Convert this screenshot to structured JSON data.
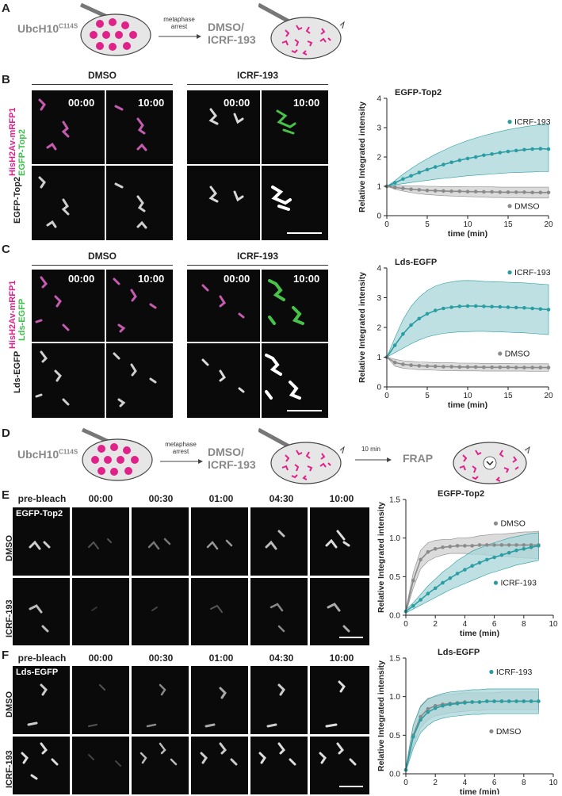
{
  "panelA": {
    "letter": "A",
    "mutant": "UbcH10",
    "mutant_sup": "C114S",
    "arrow_label_1": "metaphase",
    "arrow_label_2": "arrest",
    "treatment_1": "DMSO/",
    "treatment_2": "ICRF-193"
  },
  "panelB": {
    "letter": "B",
    "cond1": "DMSO",
    "cond2": "ICRF-193",
    "times": [
      "00:00",
      "10:00",
      "00:00",
      "10:00"
    ],
    "row1_label_a": "HisH2Av-mRFP1",
    "row1_label_b": "EGFP-Top2",
    "row2_label": "EGFP-Top2"
  },
  "panelC": {
    "letter": "C",
    "cond1": "DMSO",
    "cond2": "ICRF-193",
    "times": [
      "00:00",
      "10:00",
      "00:00",
      "10:00"
    ],
    "row1_label_a": "HisH2Av-mRFP1",
    "row1_label_b": "Lds-EGFP",
    "row2_label": "Lds-EGFP"
  },
  "panelD": {
    "letter": "D",
    "mutant": "UbcH10",
    "mutant_sup": "C114S",
    "arrow_label_1": "metaphase",
    "arrow_label_2": "arrest",
    "treatment_1": "DMSO/",
    "treatment_2": "ICRF-193",
    "arrow2_label": "10 min",
    "frap_label": "FRAP"
  },
  "panelE": {
    "letter": "E",
    "times": [
      "pre-bleach",
      "00:00",
      "00:30",
      "01:00",
      "04:30",
      "10:00"
    ],
    "inset_label": "EGFP-Top2",
    "row1": "DMSO",
    "row2": "ICRF-193"
  },
  "panelF": {
    "letter": "F",
    "times": [
      "pre-bleach",
      "00:00",
      "00:30",
      "01:00",
      "04:30",
      "10:00"
    ],
    "inset_label": "Lds-EGFP",
    "row1": "DMSO",
    "row2": "ICRF-193"
  },
  "colors": {
    "teal": "#2a9da3",
    "tealFill": "#a9d6d8",
    "gray": "#8a8a8a",
    "grayFill": "#cfcfcf",
    "magenta": "#e0218a",
    "green": "#3cc24a"
  },
  "chart_data": [
    {
      "id": "B",
      "type": "line",
      "title": "EGFP-Top2",
      "xlabel": "time (min)",
      "ylabel": "Relative Integrated intensity",
      "xlim": [
        0,
        20
      ],
      "ylim": [
        0,
        4
      ],
      "xticks": [
        0,
        5,
        10,
        15,
        20
      ],
      "yticks": [
        0,
        1,
        2,
        3,
        4
      ],
      "series": [
        {
          "name": "ICRF-193",
          "color": "teal",
          "x": [
            0,
            1,
            2,
            3,
            4,
            5,
            6,
            7,
            8,
            9,
            10,
            11,
            12,
            13,
            14,
            15,
            16,
            17,
            18,
            19,
            20
          ],
          "y": [
            1.0,
            1.12,
            1.25,
            1.36,
            1.47,
            1.57,
            1.66,
            1.74,
            1.82,
            1.89,
            1.95,
            2.0,
            2.06,
            2.1,
            2.15,
            2.19,
            2.22,
            2.25,
            2.27,
            2.28,
            2.27
          ],
          "lower": [
            1.0,
            1.05,
            1.09,
            1.13,
            1.17,
            1.2,
            1.24,
            1.27,
            1.3,
            1.33,
            1.36,
            1.38,
            1.4,
            1.42,
            1.44,
            1.46,
            1.47,
            1.48,
            1.49,
            1.5,
            1.5
          ],
          "upper": [
            1.0,
            1.19,
            1.41,
            1.6,
            1.78,
            1.94,
            2.09,
            2.22,
            2.35,
            2.46,
            2.56,
            2.65,
            2.73,
            2.8,
            2.87,
            2.93,
            2.98,
            3.03,
            3.07,
            3.1,
            3.1
          ]
        },
        {
          "name": "DMSO",
          "color": "gray",
          "x": [
            0,
            1,
            2,
            3,
            4,
            5,
            6,
            7,
            8,
            9,
            10,
            11,
            12,
            13,
            14,
            15,
            16,
            17,
            18,
            19,
            20
          ],
          "y": [
            1.0,
            0.96,
            0.93,
            0.9,
            0.88,
            0.86,
            0.85,
            0.84,
            0.83,
            0.83,
            0.82,
            0.82,
            0.81,
            0.81,
            0.8,
            0.8,
            0.8,
            0.8,
            0.79,
            0.79,
            0.79
          ],
          "lower": [
            1.0,
            0.9,
            0.84,
            0.79,
            0.75,
            0.72,
            0.7,
            0.68,
            0.67,
            0.66,
            0.65,
            0.64,
            0.63,
            0.62,
            0.62,
            0.61,
            0.61,
            0.6,
            0.6,
            0.6,
            0.6
          ],
          "upper": [
            1.0,
            1.02,
            1.02,
            1.01,
            1.01,
            1.0,
            1.0,
            0.99,
            0.99,
            0.99,
            0.98,
            0.98,
            0.98,
            0.98,
            0.97,
            0.97,
            0.97,
            0.97,
            0.97,
            0.97,
            0.97
          ]
        }
      ],
      "legend": [
        {
          "label": "ICRF-193",
          "color": "teal",
          "x": 15.2,
          "y": 3.2
        },
        {
          "label": "DMSO",
          "color": "gray",
          "x": 15.2,
          "y": 0.33
        }
      ]
    },
    {
      "id": "C",
      "type": "line",
      "title": "Lds-EGFP",
      "xlabel": "time (min)",
      "ylabel": "Relative Integrated intensity",
      "xlim": [
        0,
        20
      ],
      "ylim": [
        0,
        4
      ],
      "xticks": [
        0,
        5,
        10,
        15,
        20
      ],
      "yticks": [
        0,
        1,
        2,
        3,
        4
      ],
      "series": [
        {
          "name": "ICRF-193",
          "color": "teal",
          "x": [
            0,
            1,
            2,
            3,
            4,
            5,
            6,
            7,
            8,
            9,
            10,
            11,
            12,
            13,
            14,
            15,
            16,
            17,
            18,
            19,
            20
          ],
          "y": [
            1.0,
            1.4,
            1.78,
            2.08,
            2.3,
            2.46,
            2.57,
            2.64,
            2.68,
            2.71,
            2.72,
            2.72,
            2.71,
            2.7,
            2.69,
            2.68,
            2.67,
            2.66,
            2.64,
            2.62,
            2.6
          ],
          "lower": [
            1.0,
            1.15,
            1.3,
            1.45,
            1.58,
            1.68,
            1.75,
            1.8,
            1.83,
            1.85,
            1.86,
            1.87,
            1.87,
            1.86,
            1.85,
            1.84,
            1.83,
            1.82,
            1.8,
            1.78,
            1.76
          ],
          "upper": [
            1.0,
            1.65,
            2.26,
            2.71,
            3.02,
            3.24,
            3.39,
            3.48,
            3.53,
            3.57,
            3.58,
            3.57,
            3.55,
            3.54,
            3.53,
            3.52,
            3.51,
            3.5,
            3.48,
            3.46,
            3.44
          ]
        },
        {
          "name": "DMSO",
          "color": "gray",
          "x": [
            0,
            1,
            2,
            3,
            4,
            5,
            6,
            7,
            8,
            9,
            10,
            11,
            12,
            13,
            14,
            15,
            16,
            17,
            18,
            19,
            20
          ],
          "y": [
            1.0,
            0.82,
            0.76,
            0.73,
            0.71,
            0.7,
            0.69,
            0.68,
            0.68,
            0.67,
            0.67,
            0.67,
            0.66,
            0.66,
            0.66,
            0.66,
            0.65,
            0.65,
            0.65,
            0.65,
            0.65
          ],
          "lower": [
            1.0,
            0.7,
            0.63,
            0.6,
            0.58,
            0.57,
            0.56,
            0.55,
            0.55,
            0.54,
            0.54,
            0.54,
            0.53,
            0.53,
            0.53,
            0.53,
            0.53,
            0.53,
            0.52,
            0.52,
            0.52
          ],
          "upper": [
            1.0,
            0.93,
            0.88,
            0.86,
            0.84,
            0.83,
            0.82,
            0.81,
            0.81,
            0.8,
            0.8,
            0.8,
            0.79,
            0.79,
            0.79,
            0.79,
            0.78,
            0.78,
            0.78,
            0.78,
            0.78
          ]
        }
      ],
      "legend": [
        {
          "label": "ICRF-193",
          "color": "teal",
          "x": 15.2,
          "y": 3.85
        },
        {
          "label": "DMSO",
          "color": "gray",
          "x": 14.0,
          "y": 1.12
        }
      ]
    },
    {
      "id": "E",
      "type": "line",
      "title": "EGFP-Top2",
      "xlabel": "time (min)",
      "ylabel": "Relative Integrated intensity",
      "xlim": [
        0,
        10
      ],
      "ylim": [
        0,
        1.5
      ],
      "xticks": [
        0,
        2,
        4,
        6,
        8,
        10
      ],
      "yticks": [
        0.0,
        0.5,
        1.0,
        1.5
      ],
      "series": [
        {
          "name": "DMSO",
          "color": "gray",
          "x": [
            0,
            0.5,
            1,
            1.5,
            2,
            2.5,
            3,
            3.5,
            4,
            4.5,
            5,
            5.5,
            6,
            6.5,
            7,
            7.5,
            8,
            8.5,
            9
          ],
          "y": [
            0.05,
            0.45,
            0.72,
            0.82,
            0.86,
            0.88,
            0.89,
            0.9,
            0.9,
            0.9,
            0.91,
            0.91,
            0.91,
            0.91,
            0.91,
            0.91,
            0.91,
            0.91,
            0.91
          ],
          "lower": [
            0.03,
            0.35,
            0.6,
            0.7,
            0.75,
            0.78,
            0.8,
            0.8,
            0.8,
            0.79,
            0.79,
            0.78,
            0.77,
            0.77,
            0.76,
            0.75,
            0.74,
            0.74,
            0.73
          ],
          "upper": [
            0.07,
            0.55,
            0.84,
            0.94,
            0.97,
            0.98,
            0.98,
            1.0,
            1.0,
            1.01,
            1.03,
            1.04,
            1.05,
            1.05,
            1.06,
            1.07,
            1.08,
            1.08,
            1.09
          ]
        },
        {
          "name": "ICRF-193",
          "color": "teal",
          "x": [
            0,
            0.5,
            1,
            1.5,
            2,
            2.5,
            3,
            3.5,
            4,
            4.5,
            5,
            5.5,
            6,
            6.5,
            7,
            7.5,
            8,
            8.5,
            9
          ],
          "y": [
            0.05,
            0.12,
            0.2,
            0.28,
            0.35,
            0.42,
            0.48,
            0.54,
            0.59,
            0.64,
            0.68,
            0.72,
            0.75,
            0.78,
            0.81,
            0.84,
            0.86,
            0.88,
            0.9
          ],
          "lower": [
            0.03,
            0.08,
            0.13,
            0.18,
            0.23,
            0.28,
            0.33,
            0.37,
            0.41,
            0.45,
            0.49,
            0.53,
            0.56,
            0.59,
            0.62,
            0.65,
            0.67,
            0.69,
            0.71
          ],
          "upper": [
            0.07,
            0.16,
            0.27,
            0.38,
            0.47,
            0.56,
            0.63,
            0.71,
            0.77,
            0.83,
            0.87,
            0.91,
            0.94,
            0.97,
            1.0,
            1.02,
            1.04,
            1.06,
            1.07
          ]
        }
      ],
      "legend": [
        {
          "label": "DMSO",
          "color": "gray",
          "x": 6.1,
          "y": 1.19
        },
        {
          "label": "ICRF-193",
          "color": "teal",
          "x": 6.1,
          "y": 0.42
        }
      ]
    },
    {
      "id": "F",
      "type": "line",
      "title": "Lds-EGFP",
      "xlabel": "time (min)",
      "ylabel": "Relative Integrated intensity",
      "xlim": [
        0,
        10
      ],
      "ylim": [
        0,
        1.5
      ],
      "xticks": [
        0,
        2,
        4,
        6,
        8,
        10
      ],
      "yticks": [
        0.0,
        0.5,
        1.0,
        1.5
      ],
      "series": [
        {
          "name": "DMSO",
          "color": "gray",
          "x": [
            0,
            0.5,
            1,
            1.5,
            2,
            2.5,
            3,
            3.5,
            4,
            4.5,
            5,
            5.5,
            6,
            6.5,
            7,
            7.5,
            8,
            8.5,
            9
          ],
          "y": [
            0.05,
            0.5,
            0.74,
            0.84,
            0.88,
            0.9,
            0.91,
            0.92,
            0.93,
            0.93,
            0.93,
            0.94,
            0.94,
            0.94,
            0.94,
            0.94,
            0.94,
            0.94,
            0.94
          ],
          "lower": [
            0.03,
            0.37,
            0.6,
            0.7,
            0.75,
            0.77,
            0.79,
            0.8,
            0.81,
            0.82,
            0.82,
            0.83,
            0.83,
            0.83,
            0.83,
            0.83,
            0.83,
            0.83,
            0.83
          ],
          "upper": [
            0.07,
            0.63,
            0.88,
            0.98,
            1.0,
            1.02,
            1.03,
            1.04,
            1.05,
            1.05,
            1.05,
            1.05,
            1.05,
            1.06,
            1.06,
            1.06,
            1.06,
            1.06,
            1.06
          ]
        },
        {
          "name": "ICRF-193",
          "color": "teal",
          "x": [
            0,
            0.5,
            1,
            1.5,
            2,
            2.5,
            3,
            3.5,
            4,
            4.5,
            5,
            5.5,
            6,
            6.5,
            7,
            7.5,
            8,
            8.5,
            9
          ],
          "y": [
            0.05,
            0.48,
            0.7,
            0.8,
            0.85,
            0.88,
            0.9,
            0.91,
            0.92,
            0.93,
            0.93,
            0.94,
            0.94,
            0.94,
            0.94,
            0.94,
            0.94,
            0.94,
            0.94
          ],
          "lower": [
            0.03,
            0.33,
            0.53,
            0.63,
            0.69,
            0.72,
            0.74,
            0.75,
            0.76,
            0.77,
            0.77,
            0.78,
            0.78,
            0.78,
            0.78,
            0.78,
            0.78,
            0.78,
            0.78
          ],
          "upper": [
            0.07,
            0.63,
            0.87,
            0.97,
            1.01,
            1.04,
            1.06,
            1.07,
            1.08,
            1.09,
            1.09,
            1.1,
            1.1,
            1.1,
            1.1,
            1.1,
            1.1,
            1.1,
            1.1
          ]
        }
      ],
      "legend": [
        {
          "label": "ICRF-193",
          "color": "teal",
          "x": 5.8,
          "y": 1.32
        },
        {
          "label": "DMSO",
          "color": "gray",
          "x": 5.8,
          "y": 0.55
        }
      ]
    }
  ]
}
